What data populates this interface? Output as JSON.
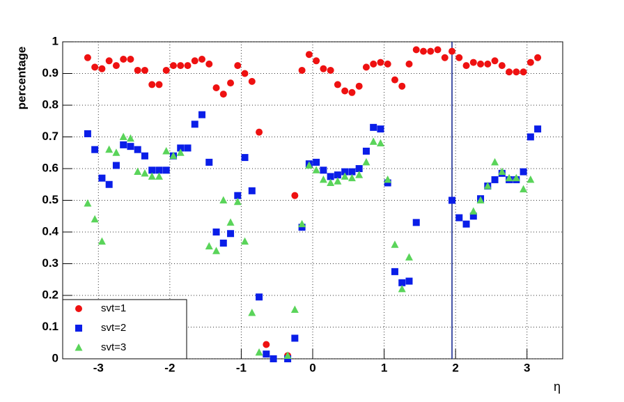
{
  "chart_data": {
    "type": "scatter",
    "x_label": "η",
    "y_label": "percentage",
    "xlim": [
      -3.5,
      3.5
    ],
    "ylim": [
      0,
      1
    ],
    "xticks": [
      -3,
      -2,
      -1,
      0,
      1,
      2,
      3
    ],
    "yticks": [
      0,
      0.1,
      0.2,
      0.3,
      0.4,
      0.5,
      0.6,
      0.7,
      0.8,
      0.9,
      1
    ],
    "grid": true,
    "legend": "lower left",
    "vlines": [
      1.95
    ],
    "series": [
      {
        "name": "svt=1",
        "color": "#ee1111",
        "marker": "circle",
        "x": [
          -3.15,
          -3.05,
          -2.95,
          -2.85,
          -2.75,
          -2.65,
          -2.55,
          -2.45,
          -2.35,
          -2.25,
          -2.15,
          -2.05,
          -1.95,
          -1.85,
          -1.75,
          -1.65,
          -1.55,
          -1.45,
          -1.35,
          -1.25,
          -1.15,
          -1.05,
          -0.95,
          -0.85,
          -0.75,
          -0.65,
          -0.35,
          -0.25,
          -0.15,
          -0.05,
          0.05,
          0.15,
          0.25,
          0.35,
          0.45,
          0.55,
          0.65,
          0.75,
          0.85,
          0.95,
          1.05,
          1.15,
          1.25,
          1.35,
          1.45,
          1.55,
          1.65,
          1.75,
          1.85,
          1.95,
          2.05,
          2.15,
          2.25,
          2.35,
          2.45,
          2.55,
          2.65,
          2.75,
          2.85,
          2.95,
          3.05,
          3.15
        ],
        "values": [
          0.95,
          0.92,
          0.915,
          0.94,
          0.925,
          0.945,
          0.945,
          0.91,
          0.91,
          0.865,
          0.865,
          0.91,
          0.925,
          0.925,
          0.925,
          0.94,
          0.945,
          0.93,
          0.855,
          0.835,
          0.87,
          0.925,
          0.9,
          0.875,
          0.715,
          0.045,
          0.01,
          0.515,
          0.91,
          0.96,
          0.94,
          0.915,
          0.91,
          0.865,
          0.845,
          0.84,
          0.86,
          0.92,
          0.93,
          0.935,
          0.93,
          0.88,
          0.86,
          0.93,
          0.975,
          0.97,
          0.97,
          0.975,
          0.95,
          0.97,
          0.95,
          0.925,
          0.935,
          0.93,
          0.93,
          0.94,
          0.925,
          0.905,
          0.905,
          0.905,
          0.935,
          0.95
        ]
      },
      {
        "name": "svt=2",
        "color": "#0a1ee8",
        "marker": "square",
        "x": [
          -3.15,
          -3.05,
          -2.95,
          -2.85,
          -2.75,
          -2.65,
          -2.55,
          -2.45,
          -2.35,
          -2.25,
          -2.15,
          -2.05,
          -1.95,
          -1.85,
          -1.75,
          -1.65,
          -1.55,
          -1.45,
          -1.35,
          -1.25,
          -1.15,
          -1.05,
          -0.95,
          -0.85,
          -0.75,
          -0.65,
          -0.55,
          -0.35,
          -0.25,
          -0.15,
          -0.05,
          0.05,
          0.15,
          0.25,
          0.35,
          0.45,
          0.55,
          0.65,
          0.75,
          0.85,
          0.95,
          1.05,
          1.15,
          1.25,
          1.35,
          1.45,
          1.95,
          2.05,
          2.15,
          2.25,
          2.35,
          2.45,
          2.55,
          2.65,
          2.75,
          2.85,
          2.95,
          3.05,
          3.15
        ],
        "values": [
          0.71,
          0.66,
          0.57,
          0.55,
          0.61,
          0.675,
          0.67,
          0.66,
          0.64,
          0.595,
          0.595,
          0.595,
          0.64,
          0.665,
          0.665,
          0.74,
          0.77,
          0.62,
          0.4,
          0.365,
          0.395,
          0.515,
          0.635,
          0.53,
          0.195,
          0.015,
          0,
          0,
          0.065,
          0.415,
          0.615,
          0.62,
          0.595,
          0.575,
          0.58,
          0.59,
          0.59,
          0.6,
          0.655,
          0.73,
          0.725,
          0.555,
          0.275,
          0.24,
          0.245,
          0.43,
          0.5,
          0.445,
          0.425,
          0.45,
          0.505,
          0.545,
          0.565,
          0.585,
          0.565,
          0.565,
          0.59,
          0.7,
          0.725
        ]
      },
      {
        "name": "svt=3",
        "color": "#5ad45a",
        "marker": "triangle",
        "x": [
          -3.15,
          -3.05,
          -2.95,
          -2.85,
          -2.75,
          -2.65,
          -2.55,
          -2.45,
          -2.35,
          -2.25,
          -2.15,
          -2.05,
          -1.95,
          -1.85,
          -1.45,
          -1.35,
          -1.25,
          -1.15,
          -1.05,
          -0.95,
          -0.85,
          -0.75,
          -0.35,
          -0.25,
          -0.15,
          -0.05,
          0.05,
          0.15,
          0.25,
          0.35,
          0.45,
          0.55,
          0.65,
          0.75,
          0.85,
          0.95,
          1.05,
          1.15,
          1.25,
          1.35,
          2.25,
          2.35,
          2.45,
          2.55,
          2.65,
          2.75,
          2.85,
          2.95,
          3.05
        ],
        "values": [
          0.49,
          0.44,
          0.37,
          0.66,
          0.65,
          0.7,
          0.695,
          0.59,
          0.585,
          0.575,
          0.575,
          0.655,
          0.64,
          0.65,
          0.355,
          0.34,
          0.5,
          0.43,
          0.495,
          0.37,
          0.145,
          0.02,
          0.01,
          0.155,
          0.425,
          0.61,
          0.595,
          0.565,
          0.555,
          0.56,
          0.575,
          0.57,
          0.58,
          0.62,
          0.685,
          0.68,
          0.565,
          0.36,
          0.22,
          0.32,
          0.465,
          0.5,
          0.545,
          0.62,
          0.59,
          0.57,
          0.57,
          0.535,
          0.565
        ]
      }
    ]
  }
}
